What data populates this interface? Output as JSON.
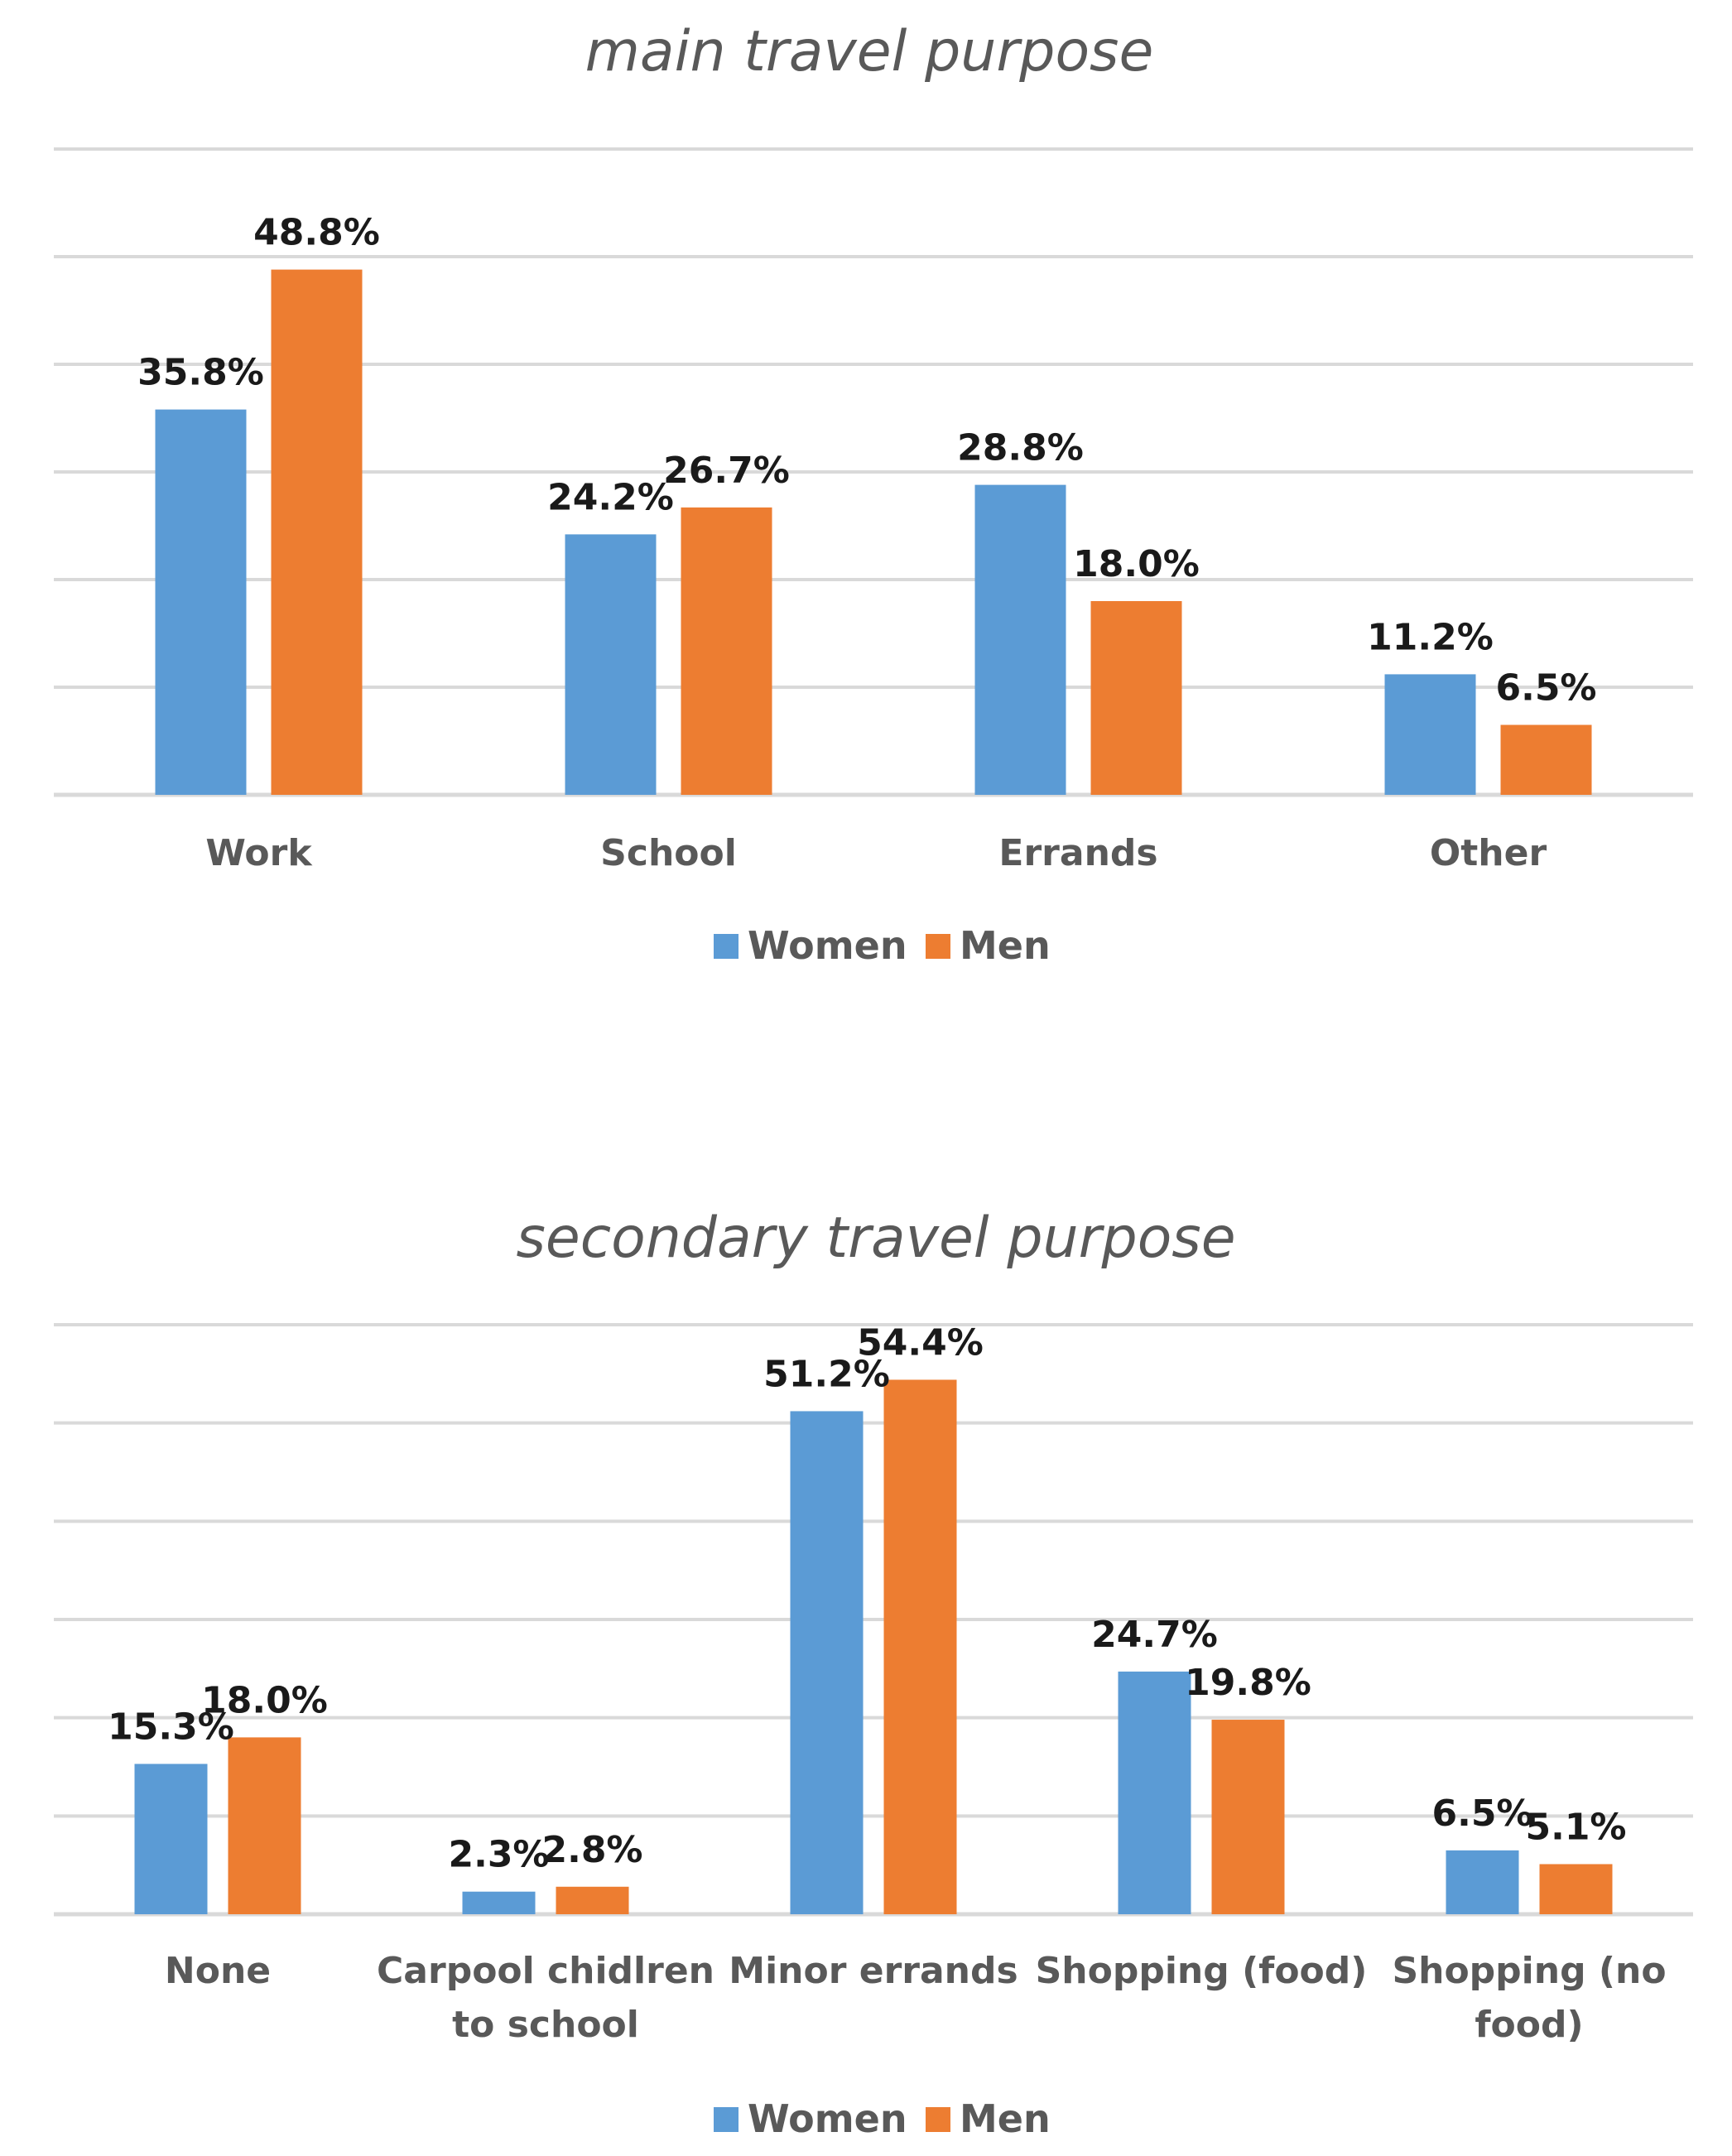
{
  "colors": {
    "women": "#5b9bd5",
    "men": "#ed7d31"
  },
  "chart_data": [
    {
      "type": "bar",
      "title": "main travel purpose",
      "categories": [
        "Work",
        "School",
        "Errands",
        "Other"
      ],
      "series": [
        {
          "name": "Women",
          "values": [
            35.8,
            24.2,
            28.8,
            11.2
          ],
          "labels": [
            "35.8%",
            "24.2%",
            "28.8%",
            "11.2%"
          ]
        },
        {
          "name": "Men",
          "values": [
            48.8,
            26.7,
            18.0,
            6.5
          ],
          "labels": [
            "48.8%",
            "26.7%",
            "18.0%",
            "6.5%"
          ]
        }
      ],
      "ylim": [
        0,
        60
      ],
      "gridlines": true,
      "legend_position": "bottom"
    },
    {
      "type": "bar",
      "title": "secondary travel purpose",
      "categories": [
        "None",
        "Carpool chidlren to school",
        "Minor errands",
        "Shopping (food)",
        "Shopping (no food)"
      ],
      "category_lines": [
        [
          "None"
        ],
        [
          "Carpool chidlren",
          "to school"
        ],
        [
          "Minor errands"
        ],
        [
          "Shopping (food)"
        ],
        [
          "Shopping (no",
          "food)"
        ]
      ],
      "series": [
        {
          "name": "Women",
          "values": [
            15.3,
            2.3,
            51.2,
            24.7,
            6.5
          ],
          "labels": [
            "15.3%",
            "2.3%",
            "51.2%",
            "24.7%",
            "6.5%"
          ]
        },
        {
          "name": "Men",
          "values": [
            18.0,
            2.8,
            54.4,
            19.8,
            5.1
          ],
          "labels": [
            "18.0%",
            "2.8%",
            "54.4%",
            "19.8%",
            "5.1%"
          ]
        }
      ],
      "ylim": [
        0,
        60
      ],
      "gridlines": true,
      "legend_position": "bottom"
    }
  ]
}
